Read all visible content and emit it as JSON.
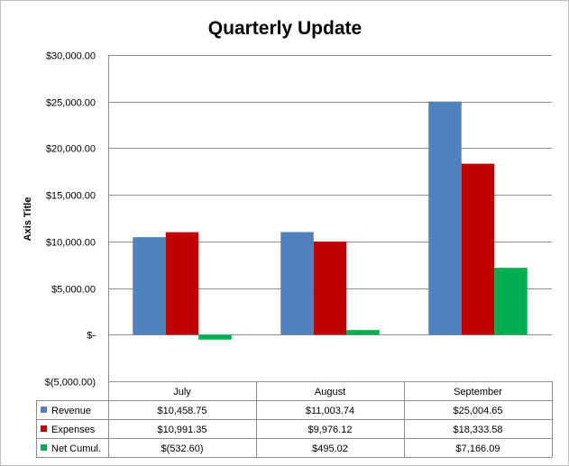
{
  "chart_data": {
    "type": "bar",
    "title": "Quarterly Update",
    "ylabel": "Axis Title",
    "xlabel": "",
    "categories": [
      "July",
      "August",
      "September"
    ],
    "ylim": [
      -5000,
      30000
    ],
    "yticks": [
      30000,
      25000,
      20000,
      15000,
      10000,
      5000,
      0,
      -5000
    ],
    "ytick_labels": [
      "$30,000.00",
      "$25,000.00",
      "$20,000.00",
      "$15,000.00",
      "$10,000.00",
      "$5,000.00",
      "$-",
      "$(5,000.00)"
    ],
    "grid": true,
    "legend": "data table",
    "series": [
      {
        "name": "Revenue",
        "color": "#4f81bd",
        "values": [
          10458.75,
          11003.74,
          25004.65
        ],
        "labels": [
          "$10,458.75",
          "$11,003.74",
          "$25,004.65"
        ]
      },
      {
        "name": "Expenses",
        "color": "#c00000",
        "values": [
          10991.35,
          9976.12,
          18333.58
        ],
        "labels": [
          "$10,991.35",
          "$9,976.12",
          "$18,333.58"
        ]
      },
      {
        "name": "Net Cumul.",
        "color": "#00b050",
        "values": [
          -532.6,
          495.02,
          7166.09
        ],
        "labels": [
          "$(532.60)",
          "$495.02",
          "$7,166.09"
        ]
      }
    ]
  }
}
